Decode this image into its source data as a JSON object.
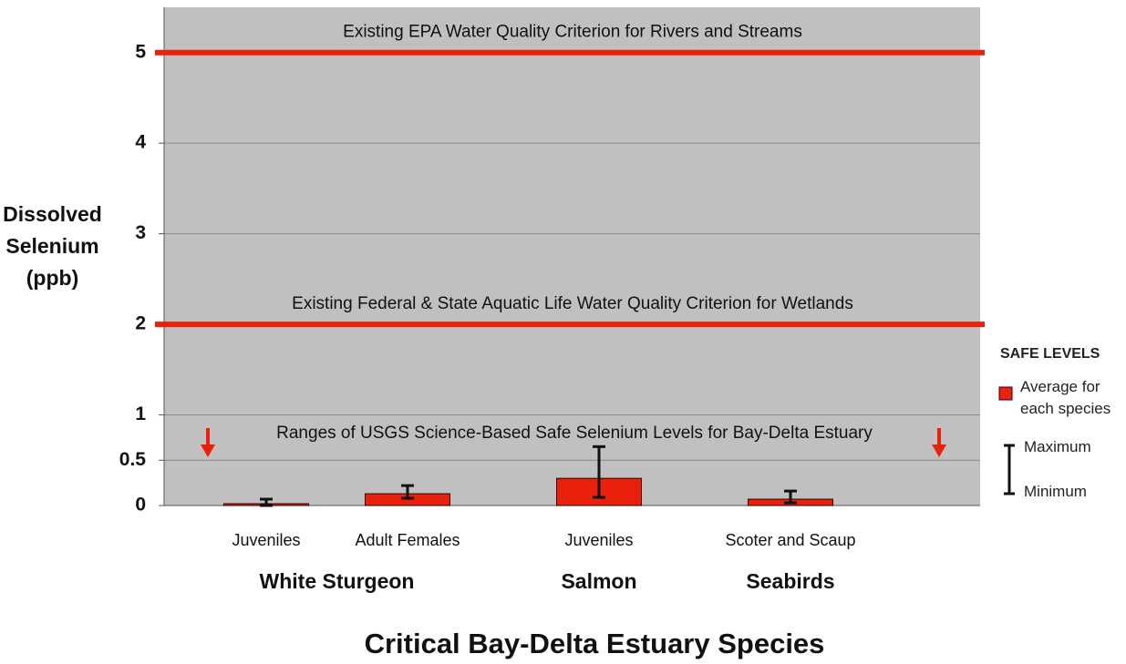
{
  "chart_data": {
    "type": "bar",
    "x_title": "Critical Bay-Delta Estuary Species",
    "y_title": "Dissolved Selenium (ppb)",
    "groups": [
      {
        "name": "White Sturgeon",
        "categories": [
          "Juveniles",
          "Adult Females"
        ]
      },
      {
        "name": "Salmon",
        "categories": [
          "Juveniles"
        ]
      },
      {
        "name": "Seabirds",
        "categories": [
          "Scoter and Scaup"
        ]
      }
    ],
    "series": [
      {
        "name": "Average for each species",
        "color": "#e8200c",
        "values": [
          0.02,
          0.13,
          0.3,
          0.07
        ],
        "min": [
          0,
          0.08,
          0.09,
          0.03
        ],
        "max": [
          0.07,
          0.22,
          0.65,
          0.16
        ]
      }
    ],
    "range_labels": {
      "max": "Maximum",
      "min": "Minimum"
    },
    "legend_title": "SAFE LEVELS",
    "reference_lines": [
      {
        "value": 5,
        "label": "Existing EPA Water Quality Criterion for Rivers and Streams",
        "color": "#e8200c"
      },
      {
        "value": 2,
        "label": "Existing Federal & State Aquatic Life Water Quality Criterion for Wetlands",
        "color": "#e8200c"
      }
    ],
    "annotation": "Ranges of USGS Science-Based Safe Selenium Levels for Bay-Delta Estuary",
    "ylim": [
      0,
      5.5
    ],
    "yticks": [
      0,
      0.5,
      1,
      2,
      3,
      4,
      5
    ],
    "grid": true,
    "background": "#c0c0c0"
  }
}
